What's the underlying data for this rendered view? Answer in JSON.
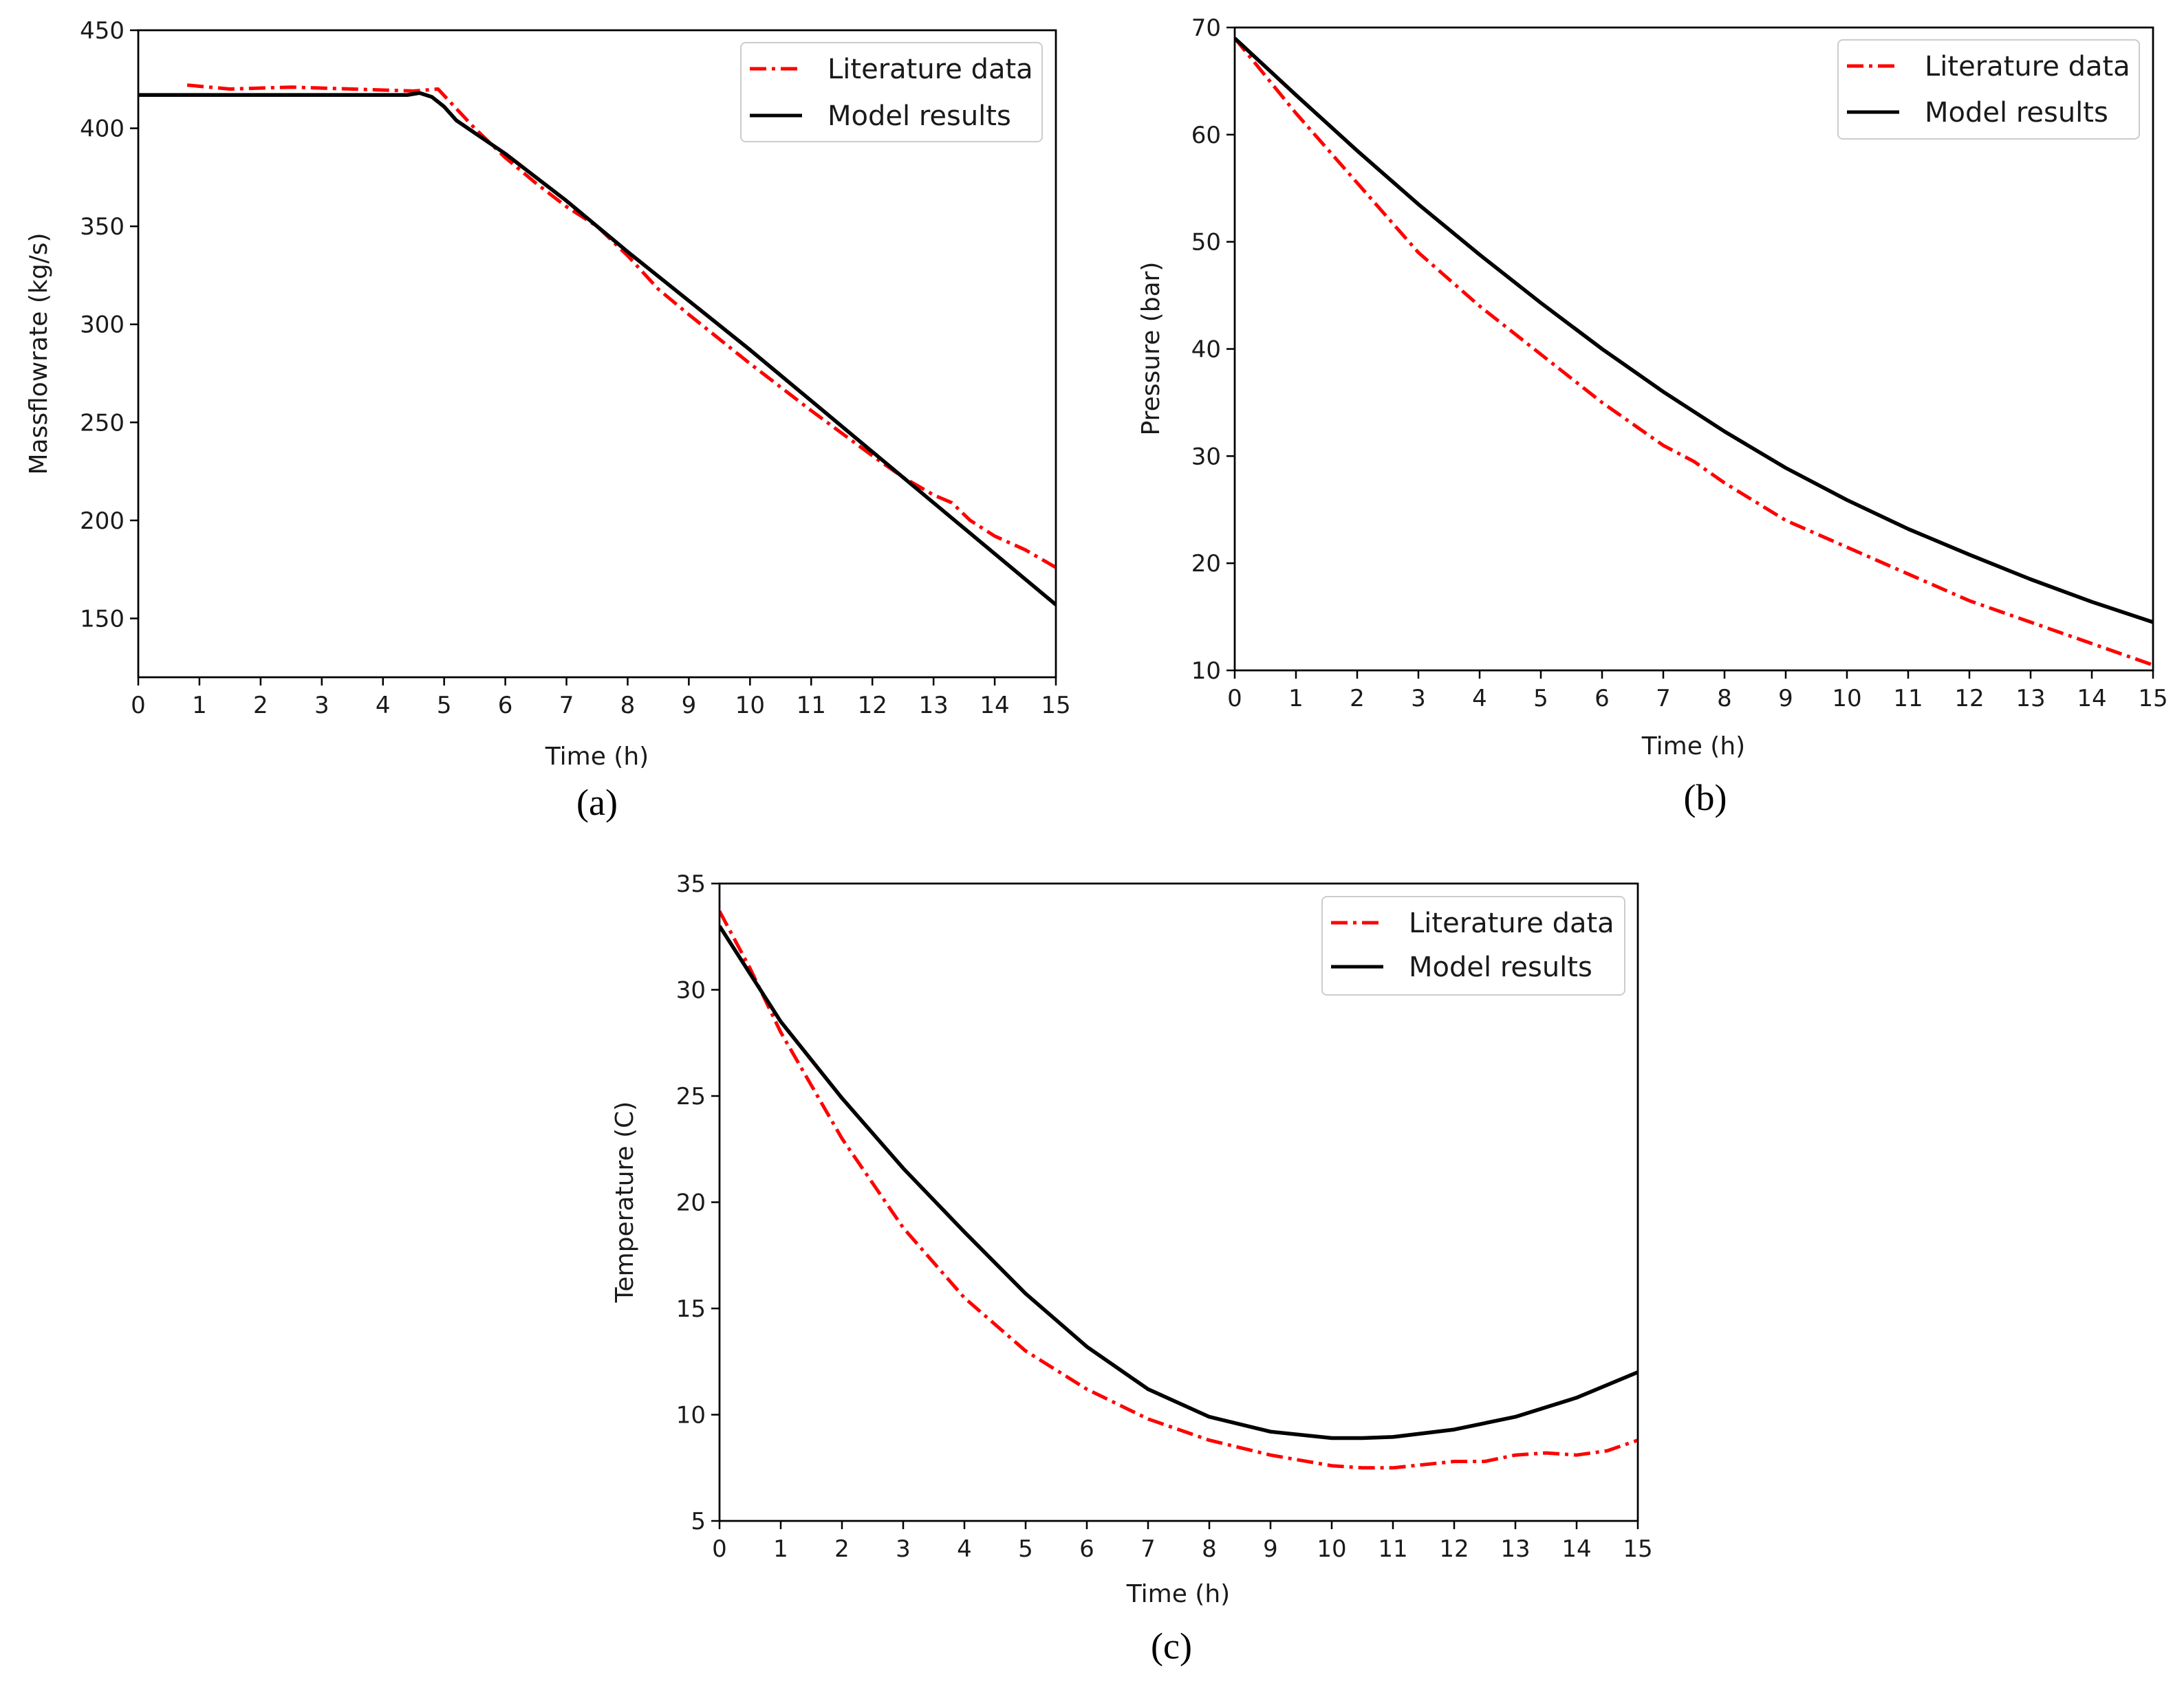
{
  "chart_data": [
    {
      "id": "a",
      "type": "line",
      "caption": "(a)",
      "xlabel": "Time (h)",
      "ylabel": "Massflowrate (kg/s)",
      "xlim": [
        0,
        15
      ],
      "ylim": [
        120,
        450
      ],
      "xticks": [
        0,
        1,
        2,
        3,
        4,
        5,
        6,
        7,
        8,
        9,
        10,
        11,
        12,
        13,
        14,
        15
      ],
      "yticks": [
        150,
        200,
        250,
        300,
        350,
        400,
        450
      ],
      "grid": false,
      "legend_position": "top-right",
      "series": [
        {
          "name": "Literature data",
          "color": "#ff0000",
          "style": "dashdot",
          "x": [
            0.8,
            1.5,
            2.5,
            3.5,
            4.5,
            4.9,
            5.5,
            6.0,
            6.5,
            7.0,
            7.5,
            8.0,
            8.5,
            9.0,
            10.0,
            11.0,
            12.0,
            12.5,
            13.0,
            13.3,
            13.6,
            14.0,
            14.5,
            15.0
          ],
          "y": [
            422,
            420,
            421,
            420,
            419,
            420,
            400,
            385,
            372,
            360,
            350,
            335,
            318,
            305,
            280,
            256,
            233,
            222,
            213,
            209,
            200,
            192,
            185,
            176
          ]
        },
        {
          "name": "Model results",
          "color": "#000000",
          "style": "solid",
          "x": [
            0,
            1,
            2,
            3,
            4,
            4.4,
            4.6,
            4.8,
            5.0,
            5.2,
            6,
            7,
            8,
            9,
            10,
            11,
            12,
            13,
            14,
            15
          ],
          "y": [
            417,
            417,
            417,
            417,
            417,
            417,
            418,
            416,
            411,
            404,
            387,
            363,
            337,
            312,
            287,
            261,
            235,
            209,
            183,
            157
          ]
        }
      ]
    },
    {
      "id": "b",
      "type": "line",
      "caption": "(b)",
      "xlabel": "Time (h)",
      "ylabel": "Pressure (bar)",
      "xlim": [
        0,
        15
      ],
      "ylim": [
        10,
        70
      ],
      "xticks": [
        0,
        1,
        2,
        3,
        4,
        5,
        6,
        7,
        8,
        9,
        10,
        11,
        12,
        13,
        14,
        15
      ],
      "yticks": [
        10,
        20,
        30,
        40,
        50,
        60,
        70
      ],
      "grid": false,
      "legend_position": "top-right",
      "series": [
        {
          "name": "Literature data",
          "color": "#ff0000",
          "style": "dashdot",
          "x": [
            0,
            1,
            2,
            3,
            4,
            5,
            6,
            7,
            7.5,
            8,
            9,
            10,
            11,
            12,
            13,
            14,
            15
          ],
          "y": [
            69,
            62,
            55.5,
            49,
            44,
            39.5,
            35,
            31,
            29.5,
            27.5,
            24,
            21.5,
            19,
            16.5,
            14.5,
            12.5,
            10.5
          ]
        },
        {
          "name": "Model results",
          "color": "#000000",
          "style": "solid",
          "x": [
            0,
            1,
            2,
            3,
            4,
            5,
            6,
            7,
            8,
            9,
            10,
            11,
            12,
            13,
            14,
            15
          ],
          "y": [
            69,
            63.7,
            58.5,
            53.5,
            48.8,
            44.3,
            40,
            36,
            32.3,
            28.9,
            25.9,
            23.2,
            20.8,
            18.5,
            16.4,
            14.5
          ]
        }
      ]
    },
    {
      "id": "c",
      "type": "line",
      "caption": "(c)",
      "xlabel": "Time (h)",
      "ylabel": "Temperature (C)",
      "xlim": [
        0,
        15
      ],
      "ylim": [
        5,
        35
      ],
      "xticks": [
        0,
        1,
        2,
        3,
        4,
        5,
        6,
        7,
        8,
        9,
        10,
        11,
        12,
        13,
        14,
        15
      ],
      "yticks": [
        5,
        10,
        15,
        20,
        25,
        30,
        35
      ],
      "grid": false,
      "legend_position": "top-right",
      "series": [
        {
          "name": "Literature data",
          "color": "#ff0000",
          "style": "dashdot",
          "x": [
            0,
            0.5,
            1,
            2,
            3,
            4,
            5,
            6,
            7,
            8,
            9,
            10,
            10.5,
            11,
            12,
            12.5,
            13,
            13.5,
            14,
            14.5,
            15
          ],
          "y": [
            33.7,
            31,
            28,
            23,
            18.8,
            15.5,
            13,
            11.2,
            9.8,
            8.8,
            8.1,
            7.6,
            7.5,
            7.5,
            7.8,
            7.8,
            8.1,
            8.2,
            8.1,
            8.3,
            8.8
          ]
        },
        {
          "name": "Model results",
          "color": "#000000",
          "style": "solid",
          "x": [
            0,
            1,
            2,
            3,
            4,
            5,
            6,
            7,
            8,
            9,
            10,
            10.5,
            11,
            12,
            13,
            14,
            15
          ],
          "y": [
            33,
            28.5,
            24.9,
            21.6,
            18.6,
            15.7,
            13.2,
            11.2,
            9.9,
            9.2,
            8.9,
            8.9,
            8.95,
            9.3,
            9.9,
            10.8,
            12
          ]
        }
      ]
    }
  ]
}
